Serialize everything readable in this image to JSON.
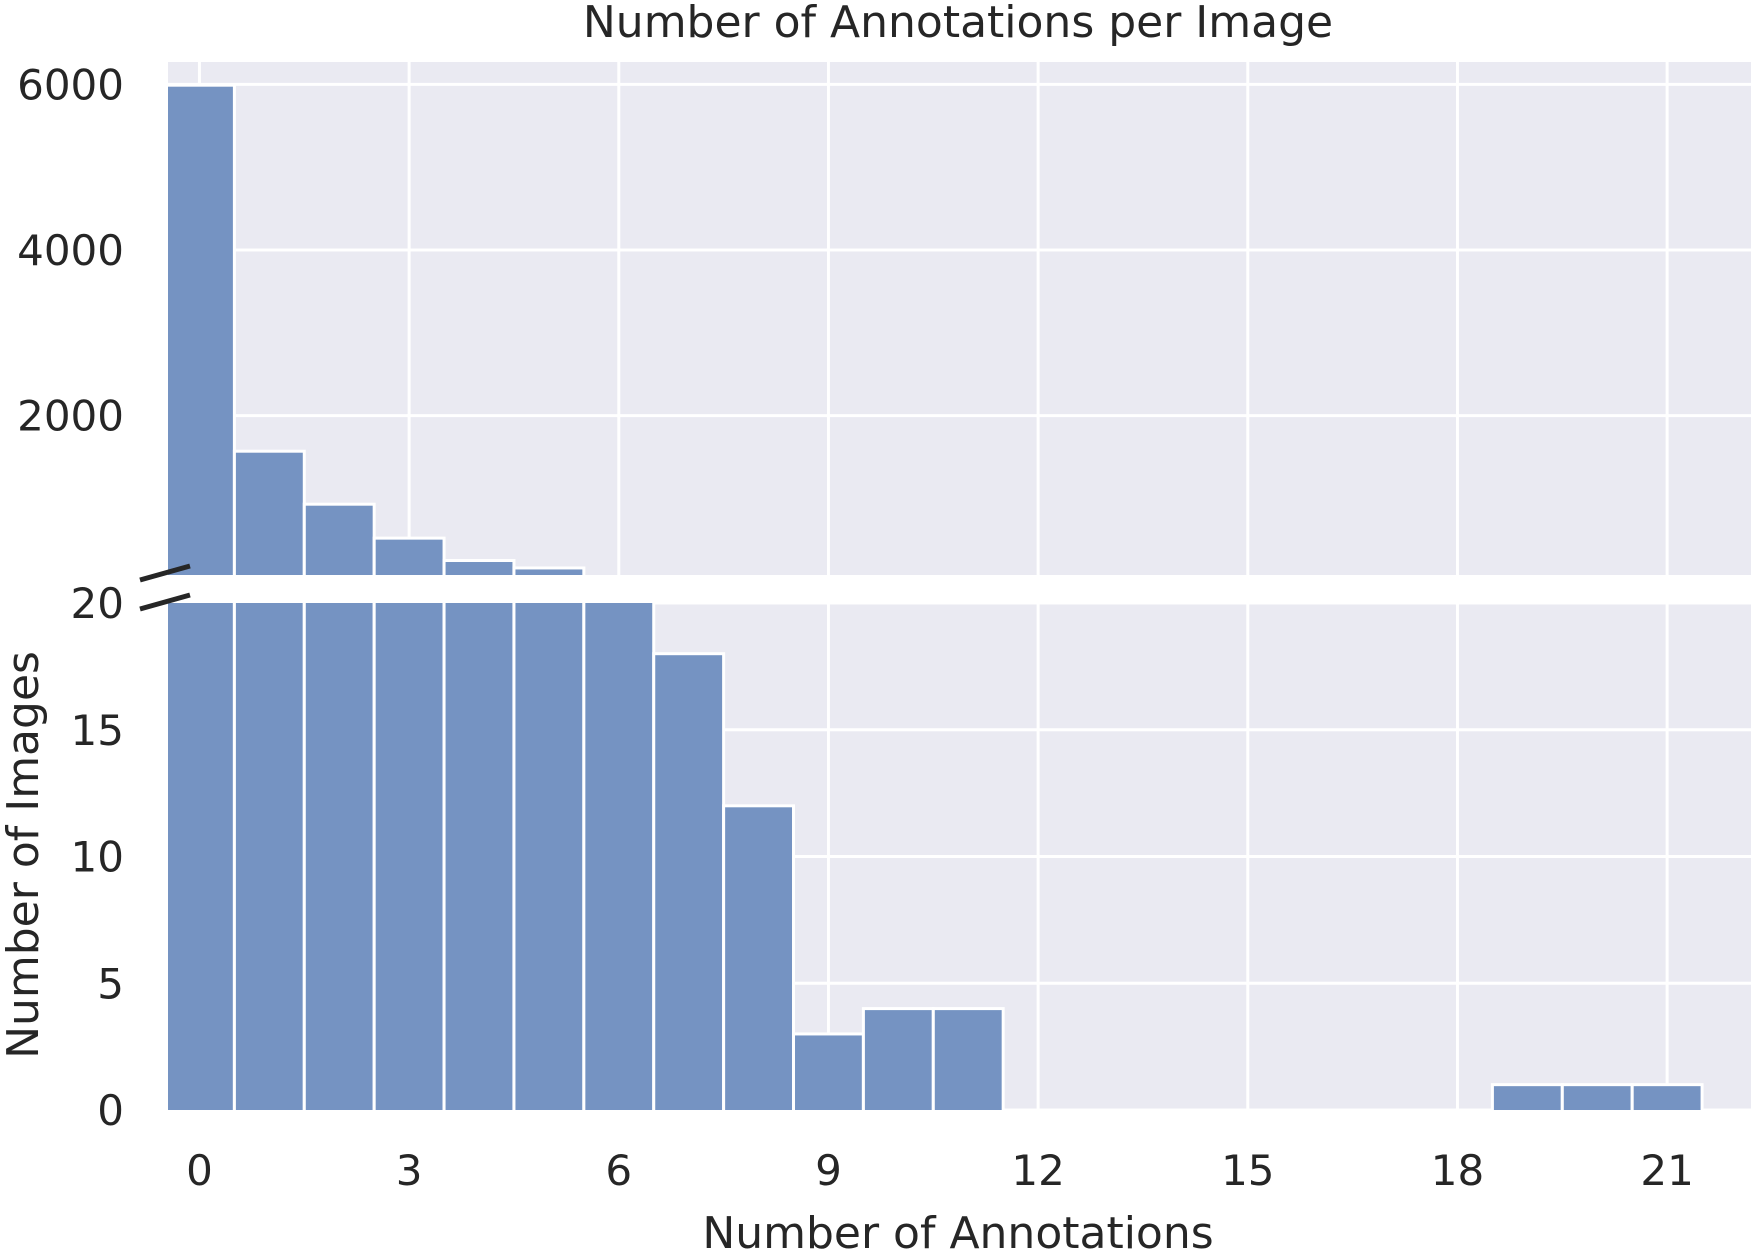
{
  "chart_data": {
    "type": "bar",
    "title": "Number of Annotations per Image",
    "xlabel": "Number of Annotations",
    "ylabel": "Number of Images",
    "broken_y_axis": true,
    "x": [
      0,
      1,
      2,
      3,
      4,
      5,
      6,
      7,
      8,
      9,
      10,
      11,
      12,
      13,
      14,
      15,
      16,
      17,
      18,
      19,
      20,
      21
    ],
    "values": [
      5990,
      1570,
      930,
      520,
      250,
      160,
      60,
      18,
      12,
      3,
      4,
      4,
      0,
      0,
      0,
      0,
      0,
      0,
      0,
      1,
      1,
      1
    ],
    "xlim": [
      -0.45,
      22.2
    ],
    "xticks": [
      0,
      3,
      6,
      9,
      12,
      15,
      18,
      21
    ],
    "upper_panel": {
      "ylim": [
        75,
        6270
      ],
      "yticks": [
        2000,
        4000,
        6000
      ]
    },
    "lower_panel": {
      "ylim": [
        0,
        20
      ],
      "yticks": [
        0,
        5,
        10,
        15,
        20
      ]
    },
    "grid": true,
    "bar_color": "#7593c2",
    "background_color": "#eaeaf2",
    "grid_color": "#ffffff"
  }
}
